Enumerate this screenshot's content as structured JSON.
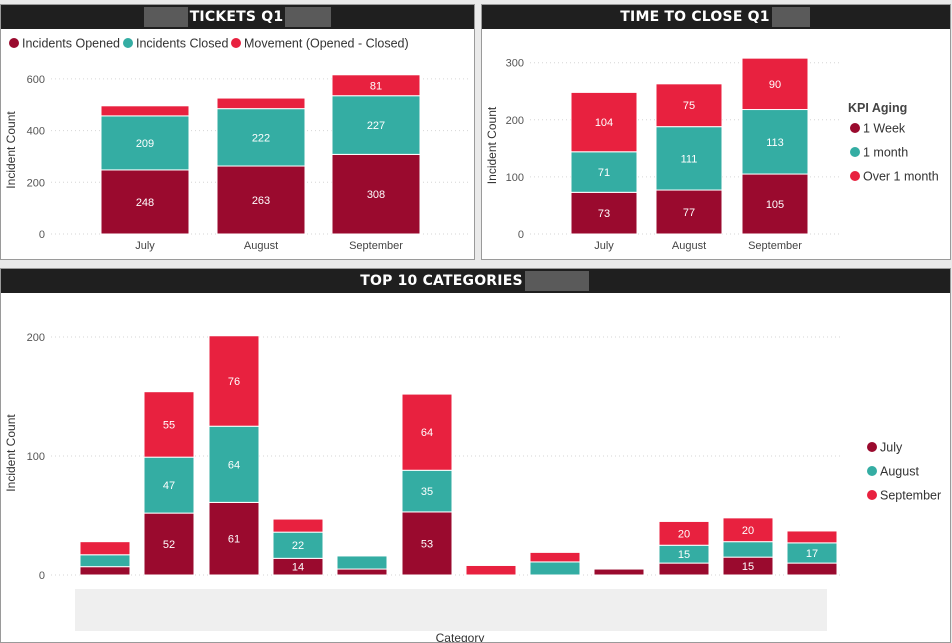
{
  "colors": {
    "dark_red": "#9a0a2e",
    "teal": "#34ada3",
    "red": "#e8213f"
  },
  "panels": {
    "tickets": {
      "title": "TICKETS Q1"
    },
    "time_to_close": {
      "title": "TIME TO CLOSE Q1"
    },
    "top10": {
      "title": "TOP 10 CATEGORIES"
    }
  },
  "chart_data": [
    {
      "type": "bar",
      "stacked": true,
      "title": "TICKETS Q1",
      "ylabel": "Incident Count",
      "xlabel": "",
      "ylim": [
        0,
        650
      ],
      "yticks": [
        0,
        200,
        400,
        600
      ],
      "categories": [
        "July",
        "August",
        "September"
      ],
      "legend_position": "top",
      "series": [
        {
          "name": "Incidents Opened",
          "color": "#9a0a2e",
          "values": [
            248,
            263,
            308
          ],
          "labels": [
            "248",
            "263",
            "308"
          ]
        },
        {
          "name": "Incidents Closed",
          "color": "#34ada3",
          "values": [
            209,
            222,
            227
          ],
          "labels": [
            "209",
            "222",
            "227"
          ]
        },
        {
          "name": "Movement (Opened - Closed)",
          "color": "#e8213f",
          "values": [
            39,
            41,
            81
          ],
          "labels": [
            "",
            "",
            "81"
          ]
        }
      ]
    },
    {
      "type": "bar",
      "stacked": true,
      "title": "TIME TO CLOSE Q1",
      "ylabel": "Incident Count",
      "xlabel": "",
      "ylim": [
        0,
        310
      ],
      "yticks": [
        0,
        100,
        200,
        300
      ],
      "categories": [
        "July",
        "August",
        "September"
      ],
      "legend_title": "KPI Aging",
      "legend_position": "right",
      "series": [
        {
          "name": "1 Week",
          "color": "#9a0a2e",
          "values": [
            73,
            77,
            105
          ],
          "labels": [
            "73",
            "77",
            "105"
          ]
        },
        {
          "name": "1 month",
          "color": "#34ada3",
          "values": [
            71,
            111,
            113
          ],
          "labels": [
            "71",
            "111",
            "113"
          ]
        },
        {
          "name": "Over 1 month",
          "color": "#e8213f",
          "values": [
            104,
            75,
            90
          ],
          "labels": [
            "104",
            "75",
            "90"
          ]
        }
      ]
    },
    {
      "type": "bar",
      "stacked": true,
      "title": "TOP 10 CATEGORIES",
      "ylabel": "Incident Count",
      "xlabel": "Category",
      "ylim": [
        0,
        205
      ],
      "yticks": [
        0,
        100,
        200
      ],
      "categories": [
        "",
        "",
        "",
        "",
        "",
        "",
        "",
        "",
        "",
        "",
        "",
        ""
      ],
      "legend_position": "right",
      "series": [
        {
          "name": "July",
          "color": "#9a0a2e",
          "values": [
            7,
            52,
            61,
            14,
            5,
            53,
            0,
            0,
            5,
            10,
            15,
            10
          ],
          "labels": [
            "",
            "52",
            "61",
            "14",
            "",
            "53",
            "",
            "",
            "",
            "",
            "15",
            ""
          ]
        },
        {
          "name": "August",
          "color": "#34ada3",
          "values": [
            10,
            47,
            64,
            22,
            11,
            35,
            0,
            11,
            0,
            15,
            13,
            17
          ],
          "labels": [
            "",
            "47",
            "64",
            "22",
            "",
            "35",
            "",
            "",
            "",
            "15",
            "",
            "17"
          ]
        },
        {
          "name": "September",
          "color": "#e8213f",
          "values": [
            11,
            55,
            76,
            11,
            0,
            64,
            8,
            8,
            0,
            20,
            20,
            10
          ],
          "labels": [
            "",
            "55",
            "76",
            "",
            "",
            "64",
            "",
            "",
            "",
            "20",
            "20",
            ""
          ]
        }
      ]
    }
  ]
}
